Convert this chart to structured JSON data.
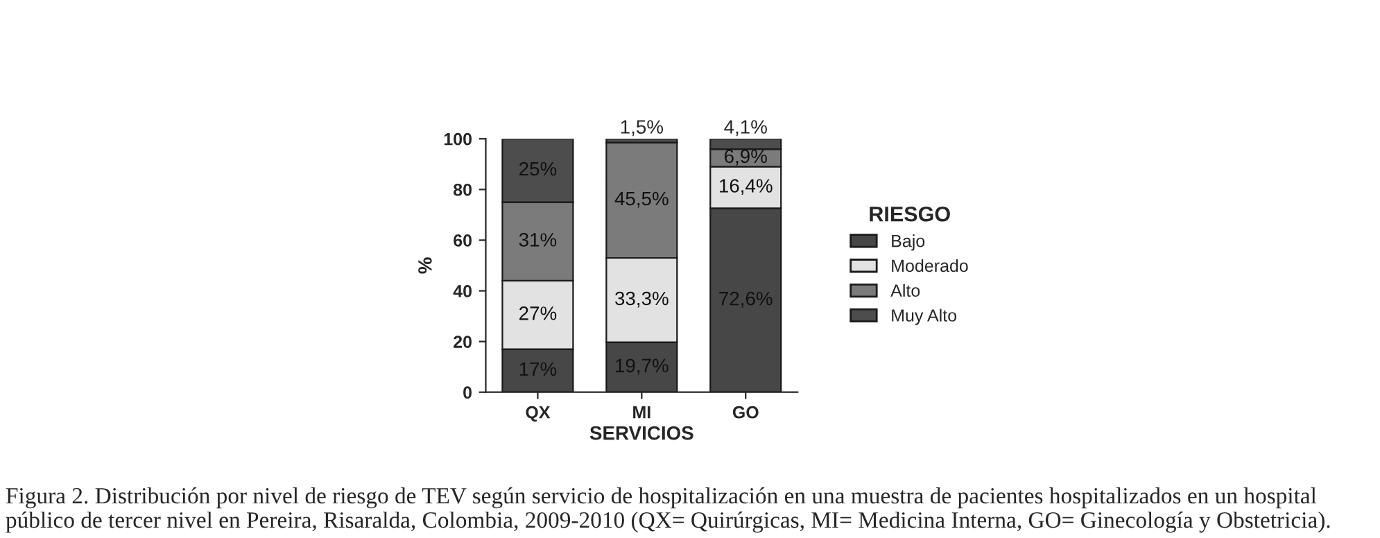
{
  "chart_data": {
    "type": "bar",
    "stacked": true,
    "categories": [
      "QX",
      "MI",
      "GO"
    ],
    "xlabel": "SERVICIOS",
    "ylabel": "%",
    "legend_title": "RIESGO",
    "legend": "right",
    "grid": false,
    "ylim": [
      0,
      100
    ],
    "yticks": [
      0,
      20,
      40,
      60,
      80,
      100
    ],
    "series": [
      {
        "name": "Bajo",
        "color": "#474747",
        "values": [
          17,
          19.7,
          72.6
        ],
        "value_labels": [
          "17%",
          "19,7%",
          "72,6%"
        ]
      },
      {
        "name": "Moderado",
        "color": "#e2e2e2",
        "values": [
          27,
          33.3,
          16.4
        ],
        "value_labels": [
          "27%",
          "33,3%",
          "16,4%"
        ]
      },
      {
        "name": "Alto",
        "color": "#7b7b7b",
        "values": [
          31,
          45.5,
          6.9
        ],
        "value_labels": [
          "31%",
          "45,5%",
          "6,9%"
        ]
      },
      {
        "name": "Muy Alto",
        "color": "#4d4d4d",
        "values": [
          25,
          1.5,
          4.1
        ],
        "value_labels": [
          "25%",
          "1,5%",
          "4,1%"
        ]
      }
    ],
    "annotations": [
      "Figura 2. Distribución por nivel de riesgo de TEV según servicio de hospitalización en una muestra de pacientes hospitalizados en un hospital público de tercer nivel en Pereira, Risaralda, Colombia, 2009-2010 (QX= Quirúrgicas, MI= Medicina Interna, GO= Ginecología y Obstetricia)."
    ]
  }
}
